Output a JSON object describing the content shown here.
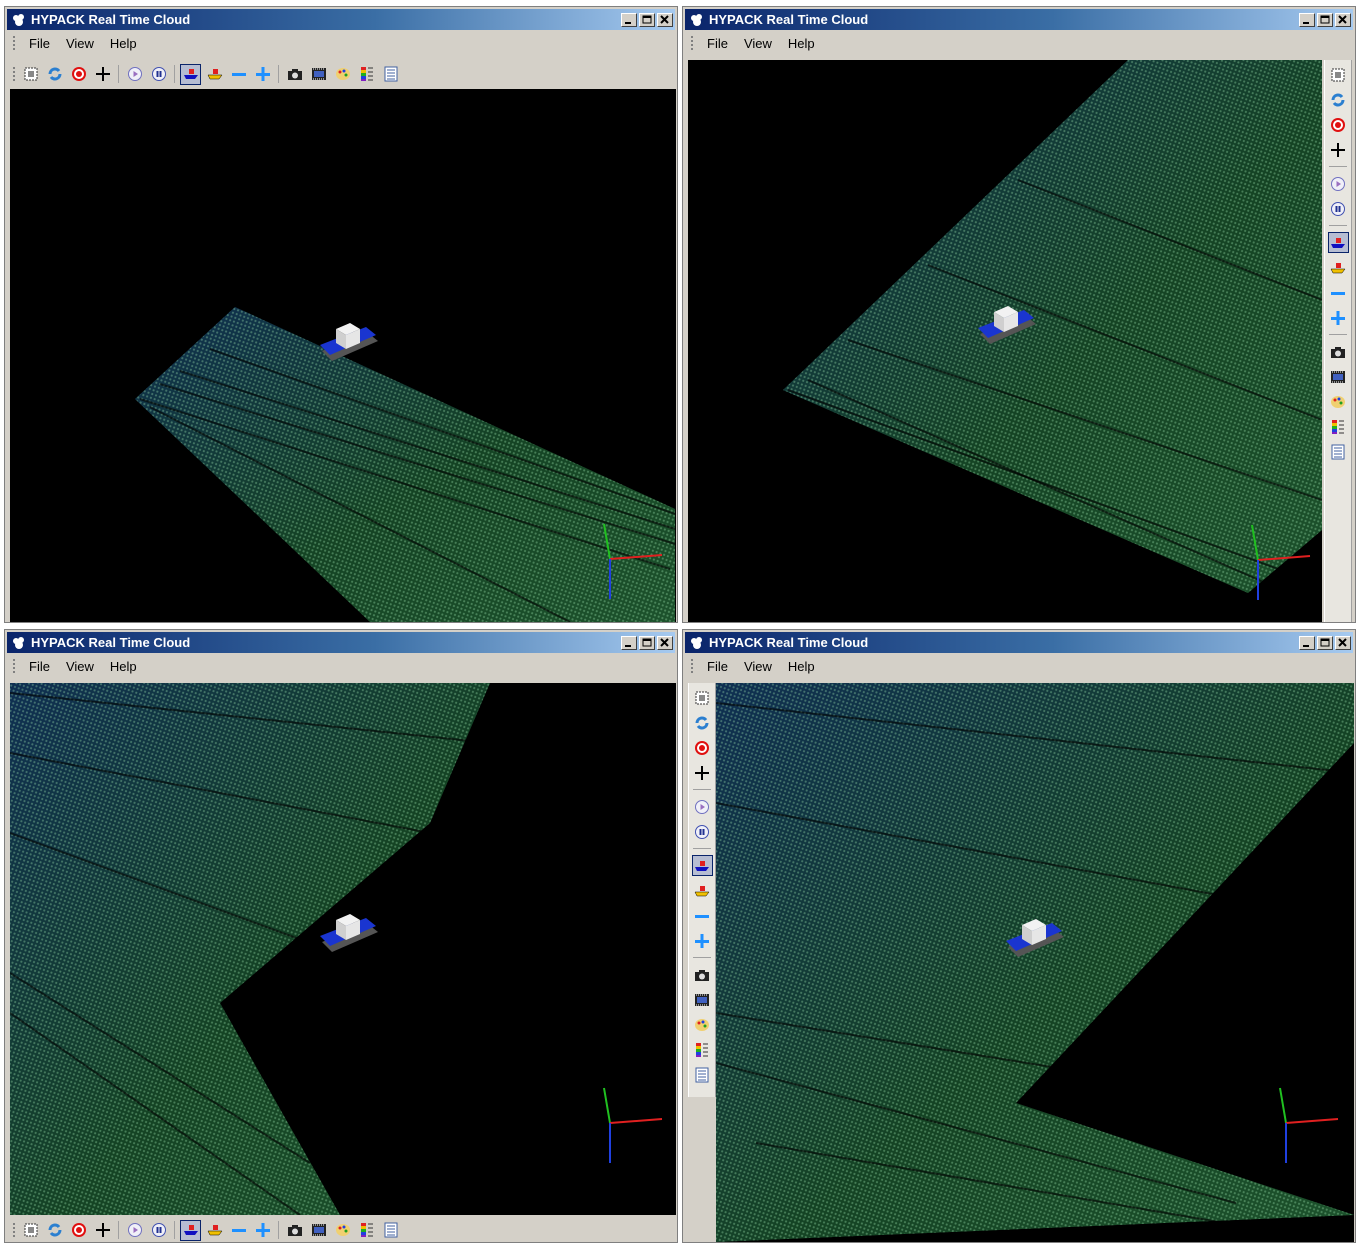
{
  "windows": [
    {
      "title": "HYPACK Real Time Cloud",
      "menu": [
        "File",
        "View",
        "Help"
      ]
    },
    {
      "title": "HYPACK Real Time Cloud",
      "menu": [
        "File",
        "View",
        "Help"
      ]
    },
    {
      "title": "HYPACK Real Time Cloud",
      "menu": [
        "File",
        "View",
        "Help"
      ]
    },
    {
      "title": "HYPACK Real Time Cloud",
      "menu": [
        "File",
        "View",
        "Help"
      ]
    }
  ],
  "toolbar_icons": [
    "zoom-extents-icon",
    "rotate-icon",
    "target-icon",
    "crosshair-icon",
    "play-icon",
    "pause-icon",
    "boat-view-icon",
    "boat-follow-icon",
    "minus-icon",
    "plus-icon",
    "camera-icon",
    "film-icon",
    "palette-icon",
    "color-scale-icon",
    "settings-list-icon"
  ],
  "colors": {
    "title_start": "#0a246a",
    "title_end": "#a6caf0",
    "cloud_blue": "#1e5fa8",
    "cloud_green": "#2a8a4a",
    "axis_x": "#e02020",
    "axis_y": "#20c020",
    "axis_z": "#2040e0",
    "boat_hull": "#1a35d0"
  }
}
